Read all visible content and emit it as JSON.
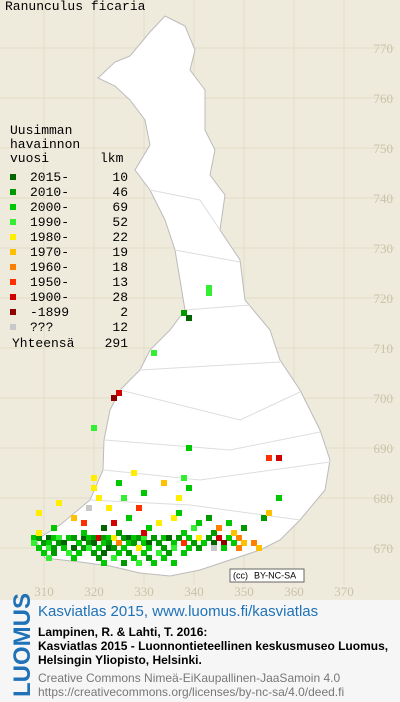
{
  "title": "Ranunculus ficaria",
  "legend": {
    "header": [
      "Uusimman",
      "havainnon",
      "vuosi"
    ],
    "count_header": "lkm",
    "rows": [
      {
        "label": "2015-",
        "count": 10,
        "color": "#006400"
      },
      {
        "label": "2010-",
        "count": 46,
        "color": "#009a00"
      },
      {
        "label": "2000-",
        "count": 69,
        "color": "#00c800"
      },
      {
        "label": "1990-",
        "count": 52,
        "color": "#33ee33"
      },
      {
        "label": "1980-",
        "count": 22,
        "color": "#ffee00"
      },
      {
        "label": "1970-",
        "count": 19,
        "color": "#ffc000"
      },
      {
        "label": "1960-",
        "count": 18,
        "color": "#ff7f00"
      },
      {
        "label": "1950-",
        "count": 13,
        "color": "#ff3000"
      },
      {
        "label": "1900-",
        "count": 28,
        "color": "#d00000"
      },
      {
        "label": "-1899",
        "count": 2,
        "color": "#8b0000"
      },
      {
        "label": "???",
        "count": 12,
        "color": "#c8c8c8"
      }
    ],
    "total_label": "Yhteensä",
    "total": 291
  },
  "map": {
    "xticks": [
      310,
      320,
      330,
      340,
      350,
      360,
      370
    ],
    "yticks": [
      670,
      680,
      690,
      700,
      710,
      720,
      730,
      740,
      750,
      760,
      770
    ],
    "cells": [
      [
        308,
        672,
        2
      ],
      [
        309,
        672,
        1
      ],
      [
        311,
        672,
        0
      ],
      [
        312,
        672,
        2
      ],
      [
        313,
        672,
        3
      ],
      [
        315,
        672,
        2
      ],
      [
        316,
        672,
        1
      ],
      [
        318,
        672,
        0
      ],
      [
        319,
        672,
        2
      ],
      [
        320,
        672,
        1
      ],
      [
        321,
        672,
        8
      ],
      [
        322,
        672,
        1
      ],
      [
        323,
        672,
        2
      ],
      [
        324,
        672,
        4
      ],
      [
        326,
        672,
        1
      ],
      [
        327,
        672,
        0
      ],
      [
        328,
        672,
        2
      ],
      [
        329,
        672,
        1
      ],
      [
        330,
        672,
        3
      ],
      [
        332,
        672,
        1
      ],
      [
        334,
        672,
        2
      ],
      [
        335,
        672,
        0
      ],
      [
        337,
        672,
        1
      ],
      [
        339,
        672,
        2
      ],
      [
        341,
        672,
        4
      ],
      [
        343,
        672,
        1
      ],
      [
        345,
        672,
        8
      ],
      [
        347,
        672,
        2
      ],
      [
        349,
        672,
        6
      ],
      [
        308,
        671,
        3
      ],
      [
        310,
        671,
        1
      ],
      [
        311,
        671,
        2
      ],
      [
        313,
        671,
        1
      ],
      [
        314,
        671,
        0
      ],
      [
        317,
        671,
        2
      ],
      [
        319,
        671,
        1
      ],
      [
        320,
        671,
        0
      ],
      [
        322,
        671,
        2
      ],
      [
        323,
        671,
        1
      ],
      [
        325,
        671,
        6
      ],
      [
        327,
        671,
        2
      ],
      [
        328,
        671,
        1
      ],
      [
        330,
        671,
        2
      ],
      [
        331,
        671,
        0
      ],
      [
        333,
        671,
        1
      ],
      [
        336,
        671,
        2
      ],
      [
        338,
        671,
        7
      ],
      [
        340,
        671,
        1
      ],
      [
        342,
        671,
        2
      ],
      [
        344,
        671,
        0
      ],
      [
        346,
        671,
        9
      ],
      [
        348,
        671,
        2
      ],
      [
        350,
        671,
        5
      ],
      [
        352,
        671,
        6
      ],
      [
        309,
        670,
        2
      ],
      [
        311,
        670,
        3
      ],
      [
        312,
        670,
        1
      ],
      [
        314,
        670,
        2
      ],
      [
        316,
        670,
        0
      ],
      [
        318,
        670,
        1
      ],
      [
        319,
        670,
        3
      ],
      [
        321,
        670,
        2
      ],
      [
        323,
        670,
        0
      ],
      [
        324,
        670,
        1
      ],
      [
        326,
        670,
        2
      ],
      [
        329,
        670,
        4
      ],
      [
        331,
        670,
        2
      ],
      [
        334,
        670,
        1
      ],
      [
        336,
        670,
        3
      ],
      [
        339,
        670,
        2
      ],
      [
        341,
        670,
        1
      ],
      [
        344,
        670,
        10
      ],
      [
        346,
        670,
        2
      ],
      [
        349,
        670,
        6
      ],
      [
        353,
        670,
        5
      ],
      [
        310,
        669,
        2
      ],
      [
        312,
        669,
        1
      ],
      [
        315,
        669,
        3
      ],
      [
        317,
        669,
        2
      ],
      [
        320,
        669,
        1
      ],
      [
        322,
        669,
        0
      ],
      [
        325,
        669,
        2
      ],
      [
        327,
        669,
        1
      ],
      [
        330,
        669,
        2
      ],
      [
        333,
        669,
        3
      ],
      [
        335,
        669,
        1
      ],
      [
        338,
        669,
        2
      ],
      [
        311,
        668,
        3
      ],
      [
        316,
        668,
        2
      ],
      [
        321,
        668,
        1
      ],
      [
        324,
        668,
        3
      ],
      [
        328,
        668,
        2
      ],
      [
        331,
        668,
        1
      ],
      [
        334,
        668,
        2
      ],
      [
        322,
        667,
        2
      ],
      [
        326,
        667,
        1
      ],
      [
        329,
        667,
        3
      ],
      [
        332,
        667,
        2
      ],
      [
        336,
        667,
        2
      ],
      [
        309,
        673,
        4
      ],
      [
        318,
        673,
        2
      ],
      [
        325,
        673,
        1
      ],
      [
        330,
        673,
        8
      ],
      [
        338,
        673,
        2
      ],
      [
        344,
        673,
        1
      ],
      [
        348,
        673,
        5
      ],
      [
        312,
        674,
        2
      ],
      [
        322,
        674,
        0
      ],
      [
        331,
        674,
        2
      ],
      [
        340,
        674,
        3
      ],
      [
        345,
        674,
        6
      ],
      [
        350,
        674,
        1
      ],
      [
        318,
        675,
        7
      ],
      [
        324,
        675,
        8
      ],
      [
        333,
        675,
        4
      ],
      [
        341,
        675,
        2
      ],
      [
        347,
        675,
        2
      ],
      [
        316,
        676,
        5
      ],
      [
        327,
        676,
        2
      ],
      [
        336,
        676,
        4
      ],
      [
        343,
        676,
        1
      ],
      [
        319,
        678,
        10
      ],
      [
        323,
        678,
        4
      ],
      [
        329,
        678,
        7
      ],
      [
        337,
        677,
        2
      ],
      [
        354,
        676,
        1
      ],
      [
        355,
        677,
        5
      ],
      [
        321,
        680,
        4
      ],
      [
        326,
        680,
        3
      ],
      [
        330,
        681,
        2
      ],
      [
        337,
        680,
        4
      ],
      [
        357,
        680,
        2
      ],
      [
        320,
        682,
        4
      ],
      [
        325,
        683,
        2
      ],
      [
        334,
        683,
        5
      ],
      [
        339,
        682,
        2
      ],
      [
        320,
        684,
        4
      ],
      [
        328,
        685,
        4
      ],
      [
        338,
        684,
        3
      ],
      [
        355,
        688,
        7
      ],
      [
        357,
        688,
        8
      ],
      [
        339,
        690,
        2
      ],
      [
        320,
        694,
        3
      ],
      [
        324,
        700,
        9
      ],
      [
        325,
        701,
        8
      ],
      [
        332,
        709,
        3
      ],
      [
        338,
        717,
        1
      ],
      [
        339,
        716,
        0
      ],
      [
        343,
        722,
        3
      ],
      [
        343,
        721,
        3
      ],
      [
        309,
        677,
        4
      ],
      [
        313,
        679,
        4
      ]
    ]
  },
  "badge": "BY-NC-SA",
  "footer": {
    "brand": "LUOMUS",
    "link": "Kasviatlas 2015, www.luomus.fi/kasviatlas",
    "citation": [
      "Lampinen, R. & Lahti, T. 2016:",
      "Kasviatlas 2015 - Luonnontieteellinen keskusmuseo Luomus,",
      "Helsingin Yliopisto, Helsinki."
    ],
    "license": [
      "Creative Commons Nimeä-EiKaupallinen-JaaSamoin 4.0",
      "https://creativecommons.org/licenses/by-nc-sa/4.0/deed.fi"
    ]
  }
}
